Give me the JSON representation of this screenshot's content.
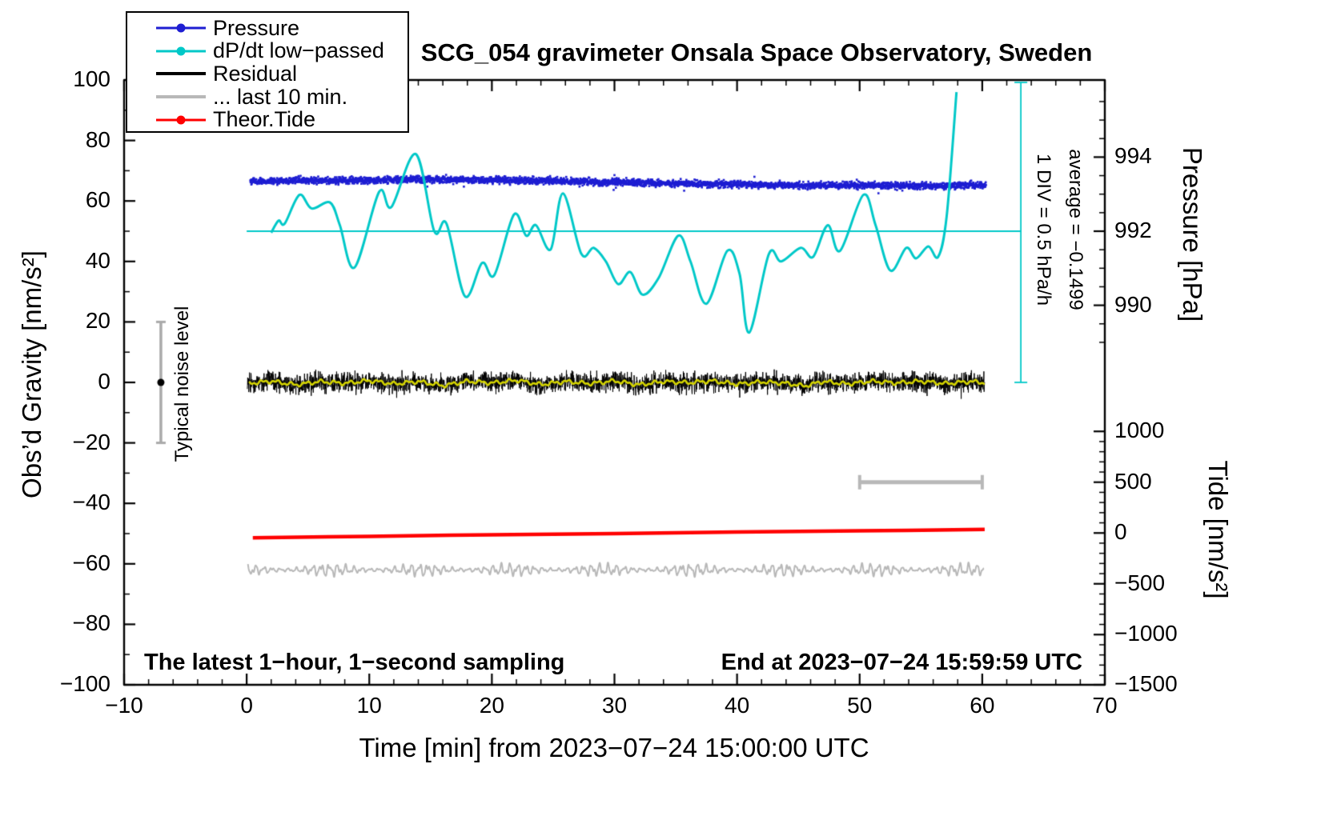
{
  "figure": {
    "title": "SCG_054 gravimeter Onsala Space Observatory, Sweden",
    "note_left": "The latest 1−hour, 1−second sampling",
    "note_right": "End at 2023−07−24 15:59:59 UTC"
  },
  "legend": {
    "position": "top-left",
    "items": [
      {
        "id": "pressure",
        "label": "Pressure",
        "color": "#1e1ed2",
        "marker": true
      },
      {
        "id": "dpdt",
        "label": "dP/dt low−passed",
        "color": "#00c8c8",
        "marker": true
      },
      {
        "id": "residual",
        "label": "Residual",
        "color": "#000000",
        "marker": false
      },
      {
        "id": "last10",
        "label": "... last 10 min.",
        "color": "#b8b8b8",
        "marker": false
      },
      {
        "id": "tide",
        "label": "Theor.Tide",
        "color": "#ff0000",
        "marker": true
      }
    ]
  },
  "chart_data": {
    "type": "line",
    "title": "SCG_054 gravimeter Onsala Space Observatory, Sweden",
    "xlabel": "Time [min] from 2023−07−24 15:00:00 UTC",
    "ylabel": "Obs’d Gravity [nm/s²]",
    "xlim": [
      -10,
      70
    ],
    "ylim": [
      -100,
      100
    ],
    "grid": false,
    "x_ticks": [
      {
        "v": -10,
        "label": "−10"
      },
      {
        "v": 0,
        "label": "0"
      },
      {
        "v": 10,
        "label": "10"
      },
      {
        "v": 20,
        "label": "20"
      },
      {
        "v": 30,
        "label": "30"
      },
      {
        "v": 40,
        "label": "40"
      },
      {
        "v": 50,
        "label": "50"
      },
      {
        "v": 60,
        "label": "60"
      },
      {
        "v": 70,
        "label": "70"
      }
    ],
    "y_ticks": [
      {
        "v": -100,
        "label": "−100"
      },
      {
        "v": -80,
        "label": "−80"
      },
      {
        "v": -60,
        "label": "−60"
      },
      {
        "v": -40,
        "label": "−40"
      },
      {
        "v": -20,
        "label": "−20"
      },
      {
        "v": 0,
        "label": "0"
      },
      {
        "v": 20,
        "label": "20"
      },
      {
        "v": 40,
        "label": "40"
      },
      {
        "v": 60,
        "label": "60"
      },
      {
        "v": 80,
        "label": "80"
      },
      {
        "v": 100,
        "label": "100"
      }
    ],
    "pressure_axis": {
      "label": "Pressure [hPa]",
      "ticks": [
        {
          "hPa": 994,
          "v": 74.5,
          "label": "994"
        },
        {
          "hPa": 992,
          "v": 50.0,
          "label": "992"
        },
        {
          "hPa": 990,
          "v": 25.5,
          "label": "990"
        }
      ],
      "map": {
        "v_at_992": 50.0,
        "v_per_hPa": 12.25
      },
      "note_div": "1 DIV = 0.5 hPa/h",
      "note_avg": "average = −0.1499"
    },
    "tide_axis": {
      "label": "Tide [nm/s²]",
      "ticks": [
        {
          "tide": 1000,
          "v": -16.2,
          "label": "1000"
        },
        {
          "tide": 500,
          "v": -33.0,
          "label": "500"
        },
        {
          "tide": 0,
          "v": -49.8,
          "label": "0"
        },
        {
          "tide": -500,
          "v": -66.6,
          "label": "−500"
        },
        {
          "tide": -1000,
          "v": -83.4,
          "label": "−1000"
        },
        {
          "tide": -1500,
          "v": -100.0,
          "label": "−1500"
        }
      ],
      "map": {
        "v_at_0": -49.8,
        "v_per_unit": 0.0336
      }
    },
    "series": [
      {
        "id": "pressure",
        "name": "Pressure",
        "color": "#1e1ed2",
        "render": "noisy_dots",
        "approx_hPa_level": [
          993.35,
          993.2
        ],
        "sampling": "1 s",
        "mean_anchors": [
          [
            0.3,
            66.5
          ],
          [
            5,
            66.8
          ],
          [
            10,
            66.8
          ],
          [
            14,
            67.2
          ],
          [
            18,
            66.9
          ],
          [
            22,
            66.8
          ],
          [
            26,
            66.6
          ],
          [
            30,
            66.2
          ],
          [
            34,
            65.9
          ],
          [
            38,
            65.6
          ],
          [
            42,
            65.3
          ],
          [
            46,
            65.1
          ],
          [
            50,
            65.2
          ],
          [
            54,
            65.0
          ],
          [
            57,
            64.9
          ],
          [
            59,
            65.3
          ],
          [
            60.3,
            65.2
          ]
        ],
        "noise_half": 1.1
      },
      {
        "id": "dpdt",
        "name": "dP/dt low−passed",
        "color": "#00c8c8",
        "render": "smooth_line",
        "width": 3,
        "anchors": [
          [
            2.0,
            49.5
          ],
          [
            2.6,
            53.5
          ],
          [
            3.1,
            52.5
          ],
          [
            4.3,
            62.0
          ],
          [
            5.3,
            57.5
          ],
          [
            6.8,
            59.5
          ],
          [
            7.6,
            52.0
          ],
          [
            8.8,
            38.0
          ],
          [
            10.8,
            63.0
          ],
          [
            11.8,
            58.0
          ],
          [
            13.8,
            75.5
          ],
          [
            15.3,
            50.0
          ],
          [
            16.3,
            52.5
          ],
          [
            17.8,
            28.5
          ],
          [
            19.2,
            39.5
          ],
          [
            20.2,
            35.5
          ],
          [
            21.8,
            55.5
          ],
          [
            22.8,
            48.5
          ],
          [
            23.6,
            52.0
          ],
          [
            24.8,
            44.0
          ],
          [
            25.8,
            62.5
          ],
          [
            27.3,
            42.5
          ],
          [
            28.3,
            44.5
          ],
          [
            29.3,
            40.0
          ],
          [
            30.3,
            32.5
          ],
          [
            31.3,
            36.5
          ],
          [
            32.3,
            29.0
          ],
          [
            33.6,
            34.5
          ],
          [
            35.2,
            48.5
          ],
          [
            36.2,
            40.0
          ],
          [
            37.5,
            26.0
          ],
          [
            39.2,
            43.5
          ],
          [
            40.2,
            36.0
          ],
          [
            41.0,
            16.5
          ],
          [
            42.6,
            42.5
          ],
          [
            43.6,
            40.0
          ],
          [
            45.2,
            44.5
          ],
          [
            46.2,
            41.5
          ],
          [
            47.4,
            52.0
          ],
          [
            48.4,
            43.5
          ],
          [
            50.3,
            62.0
          ],
          [
            51.3,
            52.0
          ],
          [
            52.5,
            37.0
          ],
          [
            53.8,
            44.5
          ],
          [
            54.6,
            41.0
          ],
          [
            55.6,
            45.0
          ],
          [
            56.4,
            41.5
          ],
          [
            57.1,
            55.0
          ],
          [
            57.9,
            96.0
          ]
        ]
      },
      {
        "id": "residual",
        "name": "Residual",
        "color": "#000000",
        "render": "noisy_line",
        "noise_sd": 1.6,
        "mean_anchors": [
          [
            0.2,
            -0.3
          ],
          [
            2,
            0.4
          ],
          [
            4,
            -0.8
          ],
          [
            6,
            0.3
          ],
          [
            8,
            -0.3
          ],
          [
            10,
            0.6
          ],
          [
            12,
            -0.5
          ],
          [
            14,
            0.3
          ],
          [
            16,
            -1.1
          ],
          [
            18,
            0.4
          ],
          [
            20,
            -0.2
          ],
          [
            22,
            0.7
          ],
          [
            24,
            -0.7
          ],
          [
            26,
            0.3
          ],
          [
            28,
            -0.4
          ],
          [
            30,
            0.5
          ],
          [
            32,
            -0.8
          ],
          [
            34,
            0.3
          ],
          [
            36,
            -0.1
          ],
          [
            38,
            0.5
          ],
          [
            40,
            -0.6
          ],
          [
            42,
            0.2
          ],
          [
            44,
            -0.3
          ],
          [
            45.5,
            -1.2
          ],
          [
            47,
            0.3
          ],
          [
            49,
            -0.5
          ],
          [
            51,
            0.4
          ],
          [
            53,
            -0.2
          ],
          [
            55,
            0.4
          ],
          [
            57,
            -0.4
          ],
          [
            59,
            0.3
          ],
          [
            60.2,
            -0.1
          ]
        ]
      },
      {
        "id": "residual_lowpass",
        "name": "Residual low-passed (yellow overlay)",
        "color": "#d4d400",
        "render": "wiggle_line",
        "in_legend": false,
        "anchors": [
          [
            0.2,
            -0.3
          ],
          [
            2,
            0.4
          ],
          [
            4,
            -0.8
          ],
          [
            6,
            0.3
          ],
          [
            8,
            -0.3
          ],
          [
            10,
            0.6
          ],
          [
            12,
            -0.5
          ],
          [
            14,
            0.3
          ],
          [
            16,
            -1.1
          ],
          [
            18,
            0.4
          ],
          [
            20,
            -0.2
          ],
          [
            22,
            0.7
          ],
          [
            24,
            -0.7
          ],
          [
            26,
            0.3
          ],
          [
            28,
            -0.4
          ],
          [
            30,
            0.5
          ],
          [
            32,
            -0.8
          ],
          [
            34,
            0.3
          ],
          [
            36,
            -0.1
          ],
          [
            38,
            0.5
          ],
          [
            40,
            -0.6
          ],
          [
            42,
            0.2
          ],
          [
            44,
            -0.3
          ],
          [
            45.5,
            -1.2
          ],
          [
            47,
            0.3
          ],
          [
            49,
            -0.5
          ],
          [
            51,
            0.4
          ],
          [
            53,
            -0.2
          ],
          [
            55,
            0.4
          ],
          [
            57,
            -0.4
          ],
          [
            59,
            0.3
          ],
          [
            60.2,
            -0.1
          ]
        ]
      },
      {
        "id": "last10",
        "name": "... last 10 min.",
        "color": "#b8b8b8",
        "render": "oscillation",
        "mean_v": -62.0,
        "amp_v": 2.6,
        "approx_tide_units_mean": -363
      },
      {
        "id": "tide",
        "name": "Theor.Tide",
        "color": "#ff0000",
        "render": "smooth_line",
        "width": 4.5,
        "anchors": [
          [
            0.5,
            -51.4
          ],
          [
            10,
            -50.9
          ],
          [
            20,
            -50.4
          ],
          [
            30,
            -50.0
          ],
          [
            40,
            -49.5
          ],
          [
            50,
            -49.1
          ],
          [
            60.2,
            -48.6
          ]
        ]
      }
    ],
    "reference_lines": {
      "color": "#00c8c8",
      "zero_line": {
        "v": 50.0,
        "x_start": 0,
        "x_end": 63.15
      },
      "scale_line": {
        "x": 63.15,
        "v_start": 0,
        "v_end": 100
      }
    },
    "scale_bar_last10": {
      "v": -33.0,
      "x_start": 50,
      "x_end": 60,
      "color": "#b8b8b8"
    },
    "noise_marker": {
      "x": -7,
      "v_center": 0,
      "v_half": 20,
      "label": "Typical noise level",
      "bar_color": "#aaaaaa",
      "dot_color": "#000000"
    }
  }
}
